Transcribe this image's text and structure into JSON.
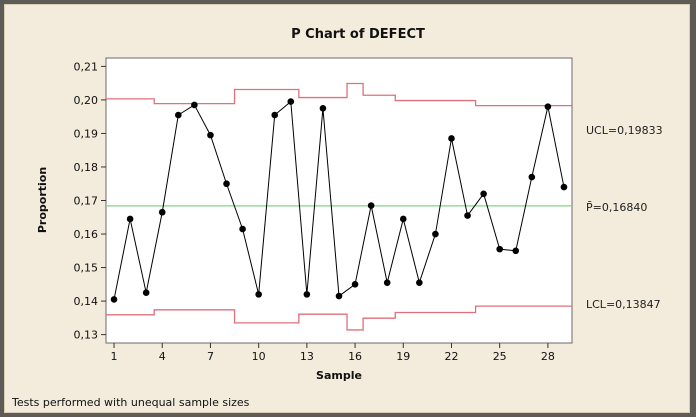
{
  "chart_data": {
    "type": "line",
    "title": "P Chart of DEFECT",
    "xlabel": "Sample",
    "ylabel": "Proportion",
    "footnote": "Tests performed with unequal sample sizes",
    "xlim": [
      0.5,
      29.5
    ],
    "ylim": [
      0.1275,
      0.2125
    ],
    "x_ticks": [
      1,
      4,
      7,
      10,
      13,
      16,
      19,
      22,
      25,
      28
    ],
    "y_ticks": [
      0.13,
      0.14,
      0.15,
      0.16,
      0.17,
      0.18,
      0.19,
      0.2,
      0.21
    ],
    "y_tick_labels": [
      "0,13",
      "0,14",
      "0,15",
      "0,16",
      "0,17",
      "0,18",
      "0,19",
      "0,20",
      "0,21"
    ],
    "x": [
      1,
      2,
      3,
      4,
      5,
      6,
      7,
      8,
      9,
      10,
      11,
      12,
      13,
      14,
      15,
      16,
      17,
      18,
      19,
      20,
      21,
      22,
      23,
      24,
      25,
      26,
      27,
      28,
      29
    ],
    "values": [
      0.1405,
      0.1645,
      0.1425,
      0.1665,
      0.1955,
      0.1985,
      0.1895,
      0.175,
      0.1615,
      0.142,
      0.1955,
      0.1995,
      0.142,
      0.1975,
      0.1415,
      0.145,
      0.1685,
      0.1455,
      0.1645,
      0.1455,
      0.16,
      0.1885,
      0.1655,
      0.172,
      0.1555,
      0.155,
      0.177,
      0.198,
      0.174
    ],
    "ucl_steps": [
      {
        "x_from": 0.5,
        "x_to": 3.5,
        "value": 0.2003
      },
      {
        "x_from": 3.5,
        "x_to": 8.5,
        "value": 0.1989
      },
      {
        "x_from": 8.5,
        "x_to": 12.5,
        "value": 0.2031
      },
      {
        "x_from": 12.5,
        "x_to": 15.5,
        "value": 0.2007
      },
      {
        "x_from": 15.5,
        "x_to": 16.5,
        "value": 0.2049
      },
      {
        "x_from": 16.5,
        "x_to": 18.5,
        "value": 0.2014
      },
      {
        "x_from": 18.5,
        "x_to": 23.5,
        "value": 0.1998
      },
      {
        "x_from": 23.5,
        "x_to": 29.5,
        "value": 0.1983
      }
    ],
    "lcl_steps": [
      {
        "x_from": 0.5,
        "x_to": 3.5,
        "value": 0.1359
      },
      {
        "x_from": 3.5,
        "x_to": 8.5,
        "value": 0.1374
      },
      {
        "x_from": 8.5,
        "x_to": 12.5,
        "value": 0.1335
      },
      {
        "x_from": 12.5,
        "x_to": 15.5,
        "value": 0.1361
      },
      {
        "x_from": 15.5,
        "x_to": 16.5,
        "value": 0.1314
      },
      {
        "x_from": 16.5,
        "x_to": 18.5,
        "value": 0.1349
      },
      {
        "x_from": 18.5,
        "x_to": 23.5,
        "value": 0.1366
      },
      {
        "x_from": 23.5,
        "x_to": 29.5,
        "value": 0.1385
      }
    ],
    "center_line": 0.1684,
    "ucl_label": "UCL=0,19833",
    "center_label": "P̄=0,16840",
    "lcl_label": "LCL=0,13847",
    "colors": {
      "data": "#000000",
      "limits": "#e0707a",
      "center": "#7fd87f",
      "plot_bg": "#ffffff",
      "frame_bg": "#f3ecdc"
    }
  }
}
